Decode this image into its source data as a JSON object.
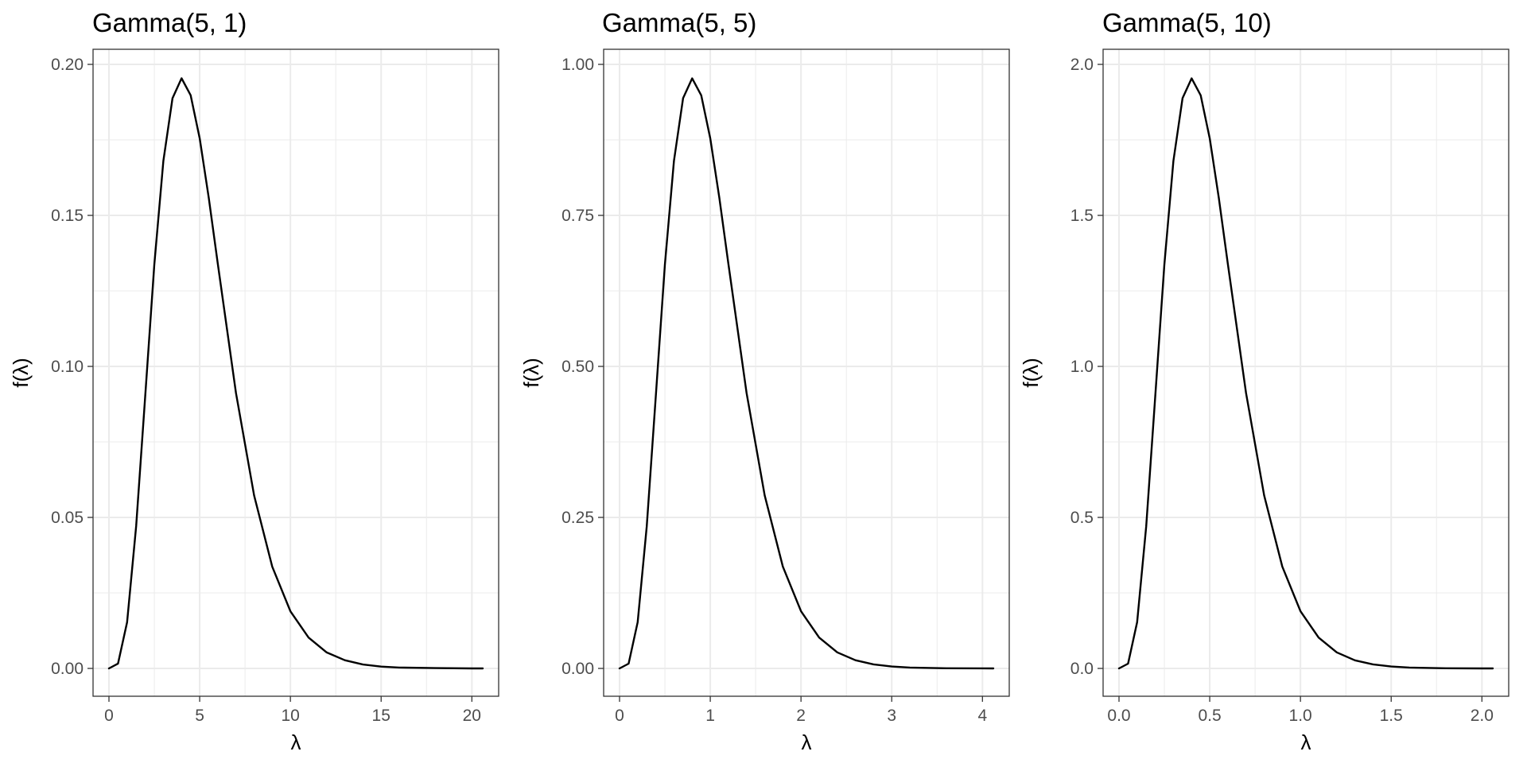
{
  "chart_data": [
    {
      "type": "line",
      "title": "Gamma(5, 1)",
      "xlabel": "λ",
      "ylabel": "f(λ)",
      "shape": 5,
      "rate": 1,
      "xlim": [
        0,
        20.6
      ],
      "ylim": [
        0,
        0.2
      ],
      "xticks": [
        0,
        5,
        10,
        15,
        20
      ],
      "xtick_labels": [
        "0",
        "5",
        "10",
        "15",
        "20"
      ],
      "xminor": [
        2.5,
        7.5,
        12.5,
        17.5
      ],
      "yticks": [
        0,
        0.05,
        0.1,
        0.15,
        0.2
      ],
      "ytick_labels": [
        "0.00",
        "0.05",
        "0.10",
        "0.15",
        "0.20"
      ],
      "yminor": [
        0.025,
        0.075,
        0.125,
        0.175
      ],
      "x": [
        0,
        0.5,
        1,
        1.5,
        2,
        2.5,
        3,
        3.5,
        4,
        4.5,
        5,
        5.5,
        6,
        7,
        8,
        9,
        10,
        11,
        12,
        13,
        14,
        15,
        16,
        18,
        20,
        20.6
      ],
      "y": [
        0,
        0.0016,
        0.0153,
        0.0471,
        0.0902,
        0.1336,
        0.168,
        0.1888,
        0.1954,
        0.1898,
        0.1755,
        0.1558,
        0.1339,
        0.0912,
        0.0573,
        0.0337,
        0.0189,
        0.0102,
        0.0053,
        0.0027,
        0.0013,
        0.0006,
        0.0003,
        0.0001,
        0,
        0
      ],
      "grid": true,
      "line_color": "#000000"
    },
    {
      "type": "line",
      "title": "Gamma(5, 5)",
      "xlabel": "λ",
      "ylabel": "f(λ)",
      "shape": 5,
      "rate": 5,
      "xlim": [
        0,
        4.12
      ],
      "ylim": [
        0,
        1
      ],
      "xticks": [
        0,
        1,
        2,
        3,
        4
      ],
      "xtick_labels": [
        "0",
        "1",
        "2",
        "3",
        "4"
      ],
      "xminor": [
        0.5,
        1.5,
        2.5,
        3.5
      ],
      "yticks": [
        0,
        0.25,
        0.5,
        0.75,
        1
      ],
      "ytick_labels": [
        "0.00",
        "0.25",
        "0.50",
        "0.75",
        "1.00"
      ],
      "yminor": [
        0.125,
        0.375,
        0.625,
        0.875
      ],
      "x": [
        0,
        0.1,
        0.2,
        0.3,
        0.4,
        0.5,
        0.6,
        0.7,
        0.8,
        0.9,
        1,
        1.1,
        1.2,
        1.4,
        1.6,
        1.8,
        2,
        2.2,
        2.4,
        2.6,
        2.8,
        3,
        3.2,
        3.6,
        4,
        4.12
      ],
      "y": [
        0,
        0.0079,
        0.0767,
        0.2353,
        0.4511,
        0.6681,
        0.8401,
        0.9441,
        0.9768,
        0.9488,
        0.8773,
        0.7788,
        0.6693,
        0.4562,
        0.2865,
        0.1687,
        0.0946,
        0.051,
        0.0266,
        0.0135,
        0.0067,
        0.0032,
        0.0015,
        0.0003,
        0.0001,
        0
      ],
      "grid": true,
      "line_color": "#000000"
    },
    {
      "type": "line",
      "title": "Gamma(5, 10)",
      "xlabel": "λ",
      "ylabel": "f(λ)",
      "shape": 5,
      "rate": 10,
      "xlim": [
        0,
        2.06
      ],
      "ylim": [
        0,
        2
      ],
      "xticks": [
        0,
        0.5,
        1,
        1.5,
        2
      ],
      "xtick_labels": [
        "0.0",
        "0.5",
        "1.0",
        "1.5",
        "2.0"
      ],
      "xminor": [
        0.25,
        0.75,
        1.25,
        1.75
      ],
      "yticks": [
        0,
        0.5,
        1,
        1.5,
        2
      ],
      "ytick_labels": [
        "0.0",
        "0.5",
        "1.0",
        "1.5",
        "2.0"
      ],
      "yminor": [
        0.25,
        0.75,
        1.25,
        1.75
      ],
      "x": [
        0,
        0.05,
        0.1,
        0.15,
        0.2,
        0.25,
        0.3,
        0.35,
        0.4,
        0.45,
        0.5,
        0.55,
        0.6,
        0.7,
        0.8,
        0.9,
        1,
        1.1,
        1.2,
        1.3,
        1.4,
        1.5,
        1.6,
        1.8,
        2,
        2.06
      ],
      "y": [
        0,
        0.0158,
        0.1533,
        0.4706,
        0.9022,
        1.3361,
        1.6803,
        1.8881,
        1.9537,
        1.8977,
        1.7547,
        1.5576,
        1.3385,
        0.9124,
        0.573,
        0.3374,
        0.1892,
        0.102,
        0.0531,
        0.0269,
        0.0133,
        0.0064,
        0.003,
        0.0006,
        0.0001,
        0
      ],
      "grid": true,
      "line_color": "#000000"
    }
  ]
}
